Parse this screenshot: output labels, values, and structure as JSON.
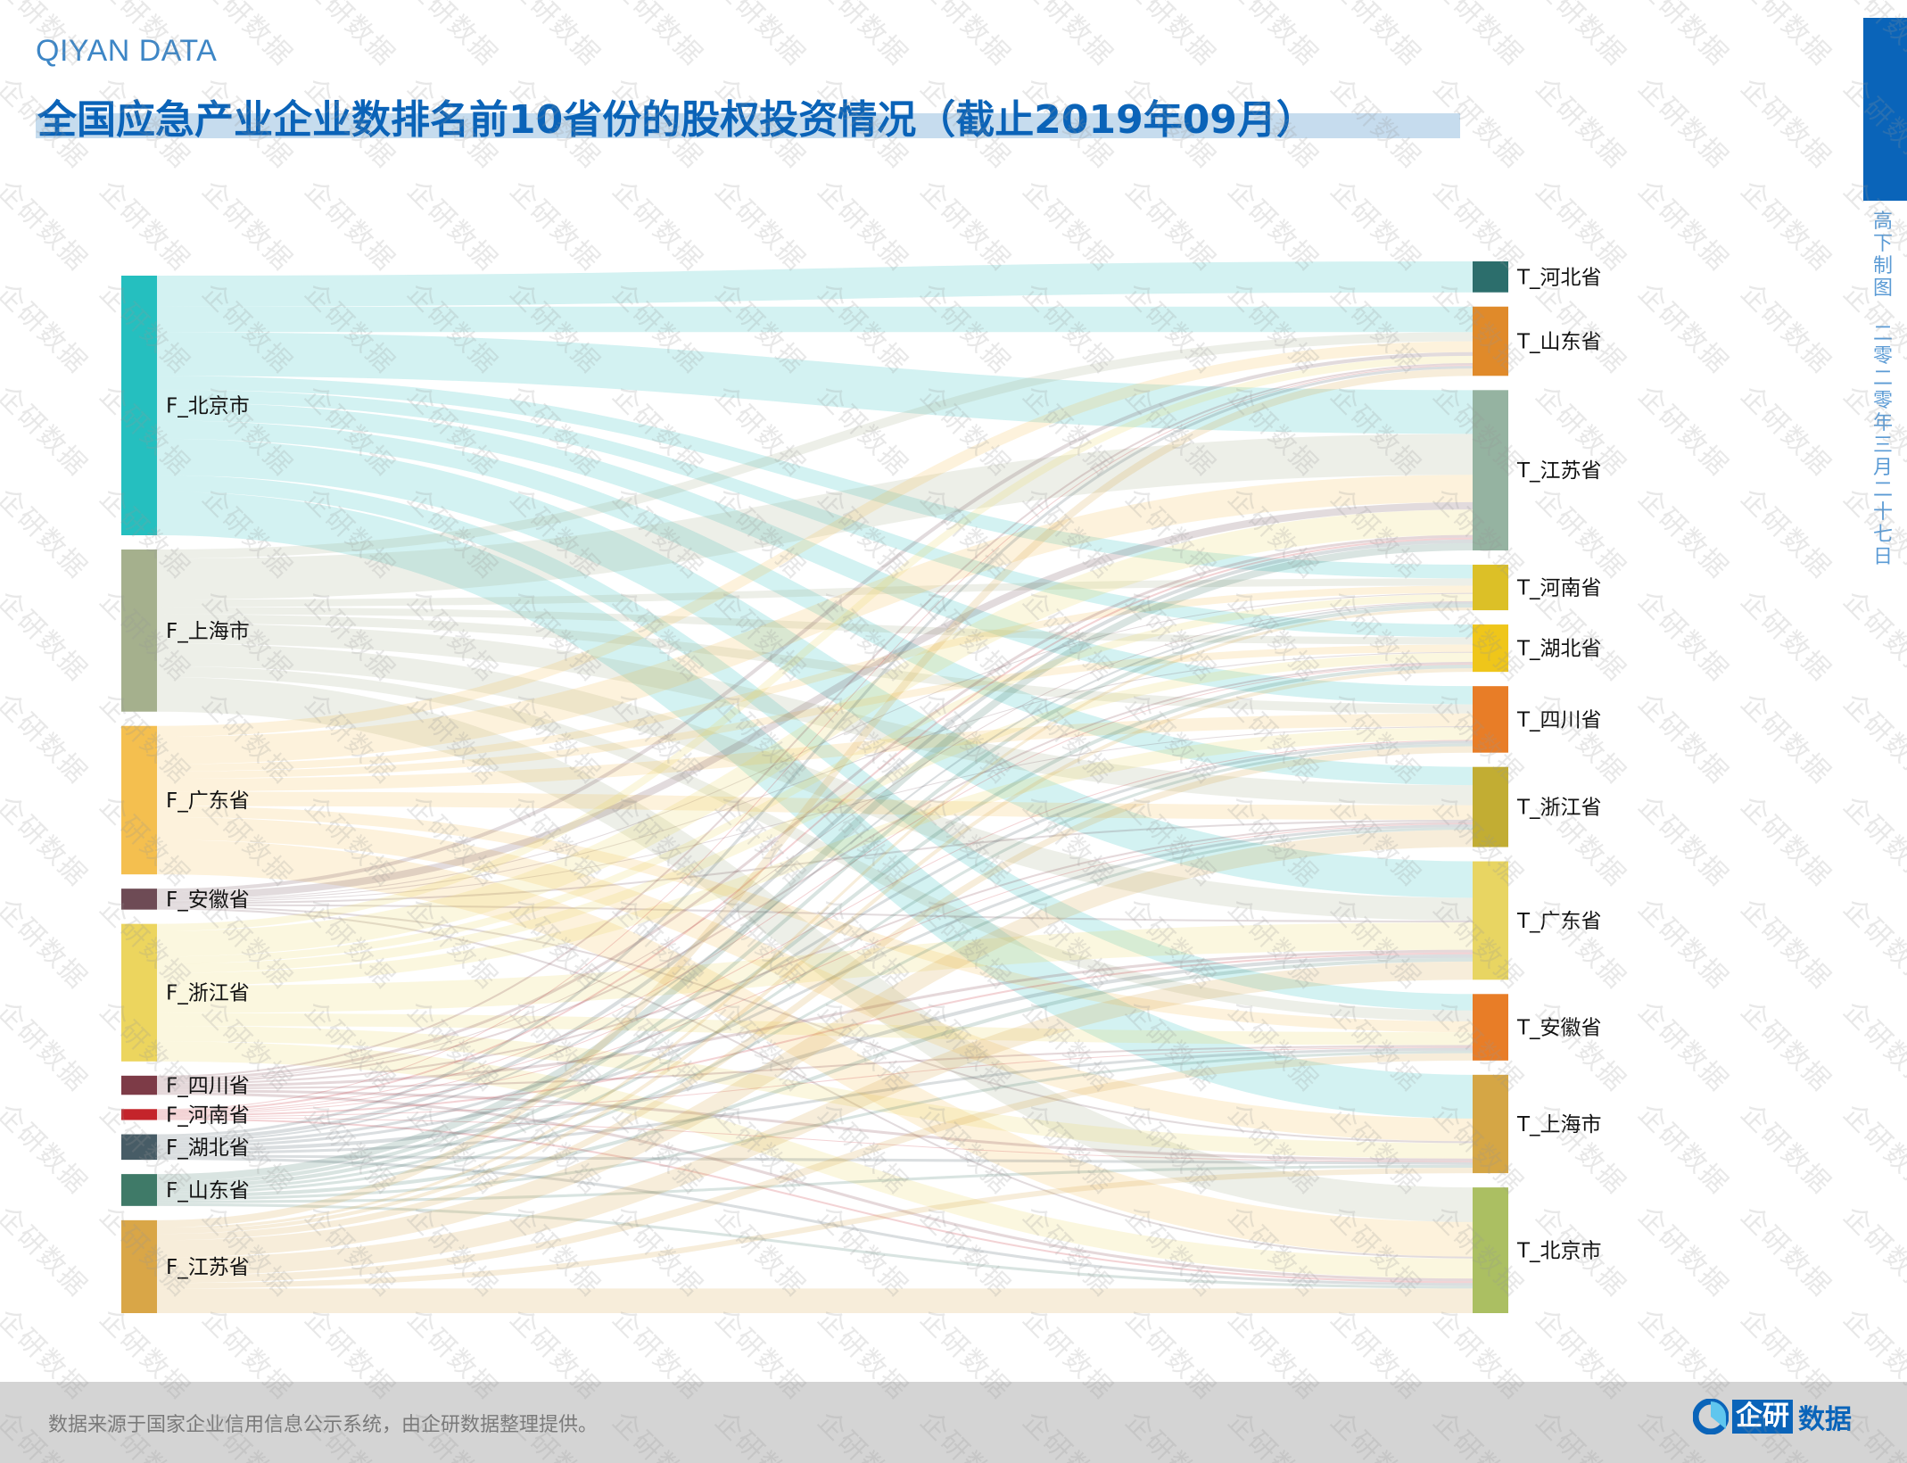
{
  "header": {
    "brand": "QIYAN DATA",
    "title": "全国应急产业企业数排名前10省份的股权投资情况（截止2019年09月）"
  },
  "side": {
    "author": "高下制图",
    "date": "二零二零年三月二十七日"
  },
  "footer": {
    "note": "数据来源于国家企业信用信息公示系统，由企研数据整理提供。",
    "logo_box": "企研",
    "logo_text": "数据"
  },
  "watermark": "企研数据",
  "colors": {
    "brand": "#0a63b8",
    "highlight": "#c6dcee"
  },
  "chart_data": {
    "type": "sankey",
    "title": "全国应急产业企业数排名前10省份的股权投资情况（截止2019年09月）",
    "sources": [
      {
        "name": "F_北京市",
        "color": "#25bfbf"
      },
      {
        "name": "F_上海市",
        "color": "#a5b08d"
      },
      {
        "name": "F_广东省",
        "color": "#f4bf4f"
      },
      {
        "name": "F_安徽省",
        "color": "#6e4b55"
      },
      {
        "name": "F_浙江省",
        "color": "#ecd55e"
      },
      {
        "name": "F_四川省",
        "color": "#7d3b47"
      },
      {
        "name": "F_河南省",
        "color": "#c4242b"
      },
      {
        "name": "F_湖北省",
        "color": "#475c66"
      },
      {
        "name": "F_山东省",
        "color": "#3f7a68"
      },
      {
        "name": "F_江苏省",
        "color": "#d9a647"
      }
    ],
    "targets": [
      {
        "name": "T_河北省",
        "color": "#2c6e6c"
      },
      {
        "name": "T_山东省",
        "color": "#e08a2a"
      },
      {
        "name": "T_江苏省",
        "color": "#95b3a1"
      },
      {
        "name": "T_河南省",
        "color": "#dcc027"
      },
      {
        "name": "T_湖北省",
        "color": "#efc61a"
      },
      {
        "name": "T_四川省",
        "color": "#e87d27"
      },
      {
        "name": "T_浙江省",
        "color": "#c2ad33"
      },
      {
        "name": "T_广东省",
        "color": "#e8d562"
      },
      {
        "name": "T_安徽省",
        "color": "#e87d27"
      },
      {
        "name": "T_上海市",
        "color": "#d5a645"
      },
      {
        "name": "T_北京市",
        "color": "#abbf62"
      }
    ],
    "links_matrix_note": "rows = sources, columns = targets (relative values, estimated)",
    "links": [
      [
        34,
        28,
        48,
        15,
        14,
        20,
        20,
        40,
        18,
        48,
        0
      ],
      [
        0,
        10,
        45,
        8,
        8,
        10,
        22,
        25,
        12,
        0,
        38
      ],
      [
        0,
        12,
        30,
        8,
        8,
        14,
        16,
        0,
        12,
        25,
        38
      ],
      [
        0,
        4,
        8,
        1,
        1,
        1,
        2,
        2,
        0,
        2,
        2
      ],
      [
        0,
        8,
        28,
        8,
        10,
        14,
        0,
        30,
        14,
        17,
        22
      ],
      [
        0,
        2,
        3,
        1,
        2,
        0,
        2,
        3,
        2,
        3,
        3
      ],
      [
        0,
        1,
        2,
        0,
        1,
        1,
        1,
        2,
        1,
        1,
        2
      ],
      [
        0,
        3,
        4,
        2,
        0,
        3,
        3,
        4,
        3,
        3,
        3
      ],
      [
        0,
        0,
        8,
        4,
        4,
        3,
        3,
        4,
        3,
        3,
        3
      ],
      [
        0,
        8,
        0,
        3,
        4,
        7,
        19,
        20,
        8,
        6,
        27
      ]
    ],
    "link_opacity": 0.2
  }
}
